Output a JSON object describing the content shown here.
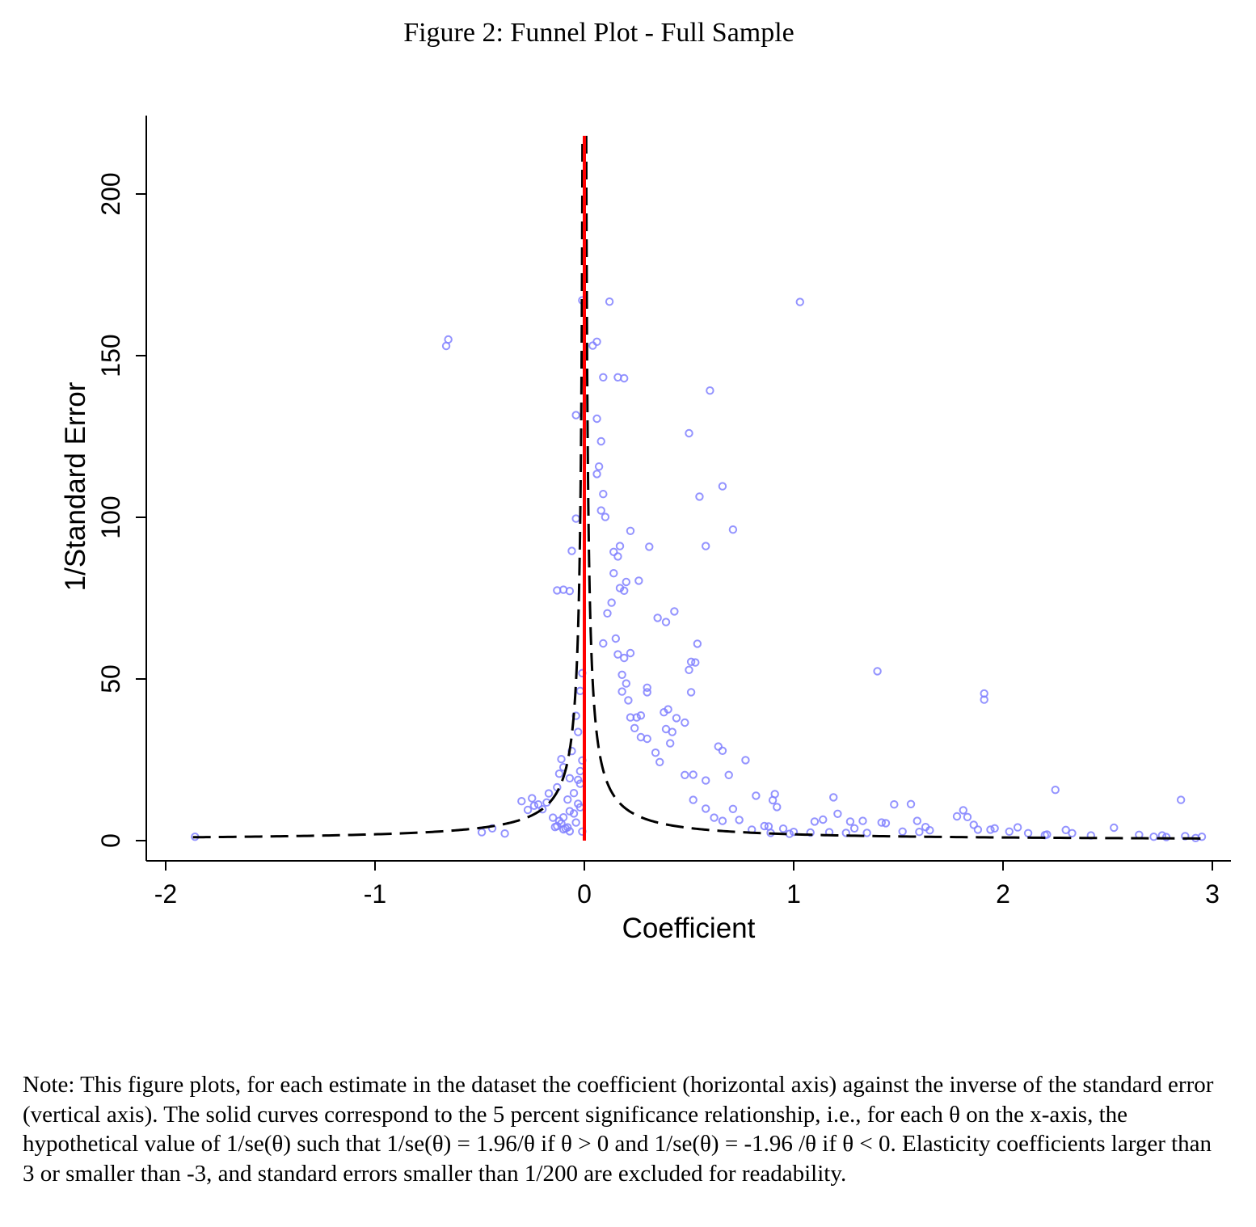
{
  "figure": {
    "title": "Figure 2: Funnel Plot - Full Sample",
    "note": "Note: This figure plots, for each estimate in the dataset the coefficient (horizontal axis) against the inverse of the standard error (vertical axis). The solid curves correspond to the 5 percent significance relationship, i.e., for each θ on the x-axis, the hypothetical value of 1/se(θ) such that 1/se(θ) = 1.96/θ if θ > 0 and 1/se(θ) = -1.96 /θ if θ < 0. Elasticity coefficients larger than 3 or smaller than -3, and standard errors smaller than 1/200 are excluded for readability."
  },
  "chart_data": {
    "type": "scatter",
    "title": "Figure 2: Funnel Plot - Full Sample",
    "xlabel": "Coefficient",
    "ylabel": "1/Standard Error",
    "xlim": [
      -2.05,
      3.1
    ],
    "ylim": [
      -6,
      224
    ],
    "xticks": [
      -2,
      -1,
      0,
      1,
      2,
      3
    ],
    "xtick_labels": [
      "-2",
      "-1",
      "0",
      "1",
      "2",
      "3"
    ],
    "yticks": [
      0,
      50,
      100,
      150,
      200
    ],
    "ytick_labels": [
      "0",
      "50",
      "100",
      "150",
      "200"
    ],
    "colors": {
      "points": "#8080ff",
      "vertical_line": "#ff0000",
      "significance_curve": "#000000"
    },
    "vertical_line": {
      "x": 0,
      "y_range": [
        0,
        218
      ]
    },
    "significance_curve": {
      "z": 1.96,
      "x_range": [
        -1.87,
        2.95
      ],
      "y_max": 218
    },
    "series": [
      {
        "name": "Estimates",
        "points": [
          [
            -1.86,
            1.2
          ],
          [
            -0.66,
            153
          ],
          [
            -0.65,
            155
          ],
          [
            -0.49,
            2.6
          ],
          [
            -0.44,
            3.8
          ],
          [
            -0.38,
            2.2
          ],
          [
            -0.3,
            12.2
          ],
          [
            -0.27,
            9.5
          ],
          [
            -0.25,
            13.1
          ],
          [
            -0.24,
            10.8
          ],
          [
            -0.22,
            11.2
          ],
          [
            -0.2,
            9.7
          ],
          [
            -0.18,
            11.8
          ],
          [
            -0.17,
            14.6
          ],
          [
            -0.15,
            7.1
          ],
          [
            -0.14,
            4.2
          ],
          [
            -0.13,
            16.5
          ],
          [
            -0.12,
            20.7
          ],
          [
            -0.11,
            25.2
          ],
          [
            -0.1,
            22.7
          ],
          [
            -0.13,
            4.5
          ],
          [
            -0.11,
            5.3
          ],
          [
            -0.1,
            7.2
          ],
          [
            -0.09,
            3.8
          ],
          [
            -0.08,
            4.1
          ],
          [
            -0.08,
            12.7
          ],
          [
            -0.07,
            9.1
          ],
          [
            -0.07,
            19.3
          ],
          [
            -0.06,
            27.7
          ],
          [
            -0.05,
            8.4
          ],
          [
            -0.05,
            14.7
          ],
          [
            -0.04,
            38.6
          ],
          [
            -0.04,
            5.6
          ],
          [
            -0.03,
            11.4
          ],
          [
            -0.03,
            33.6
          ],
          [
            -0.02,
            46.3
          ],
          [
            -0.02,
            21.5
          ],
          [
            -0.01,
            51.8
          ],
          [
            -0.01,
            24.8
          ],
          [
            -0.01,
            2.8
          ],
          [
            -0.02,
            17.6
          ],
          [
            -0.06,
            89.6
          ],
          [
            -0.04,
            99.6
          ],
          [
            -0.13,
            77.4
          ],
          [
            -0.1,
            77.6
          ],
          [
            -0.07,
            77.2
          ],
          [
            -0.04,
            131.6
          ],
          [
            -0.01,
            167.1
          ],
          [
            -0.1,
            3.5
          ],
          [
            -0.12,
            6.1
          ],
          [
            -0.02,
            10.3
          ],
          [
            -0.07,
            2.9
          ],
          [
            -0.03,
            18.8
          ],
          [
            0.12,
            166.7
          ],
          [
            0.06,
            154.3
          ],
          [
            0.04,
            153.1
          ],
          [
            0.16,
            143.3
          ],
          [
            0.19,
            143
          ],
          [
            0.09,
            143.3
          ],
          [
            0.06,
            130.5
          ],
          [
            0.08,
            123.5
          ],
          [
            0.07,
            115.7
          ],
          [
            0.09,
            107.2
          ],
          [
            0.06,
            113.4
          ],
          [
            0.08,
            102.1
          ],
          [
            0.1,
            100.1
          ],
          [
            0.14,
            89.3
          ],
          [
            0.16,
            87.9
          ],
          [
            0.17,
            91.1
          ],
          [
            0.22,
            95.8
          ],
          [
            0.31,
            90.9
          ],
          [
            0.26,
            80.4
          ],
          [
            0.2,
            80
          ],
          [
            0.19,
            77.3
          ],
          [
            0.17,
            78.1
          ],
          [
            0.14,
            82.7
          ],
          [
            0.13,
            73.6
          ],
          [
            0.11,
            70.3
          ],
          [
            0.09,
            61
          ],
          [
            0.15,
            62.5
          ],
          [
            0.16,
            57.6
          ],
          [
            0.19,
            56.5
          ],
          [
            0.18,
            51.3
          ],
          [
            0.22,
            58
          ],
          [
            0.2,
            48.6
          ],
          [
            0.18,
            46.1
          ],
          [
            0.21,
            43.4
          ],
          [
            0.22,
            38.1
          ],
          [
            0.25,
            38.1
          ],
          [
            0.27,
            38.7
          ],
          [
            0.3,
            47.3
          ],
          [
            0.3,
            45.9
          ],
          [
            0.24,
            34.8
          ],
          [
            0.27,
            32
          ],
          [
            0.3,
            31.5
          ],
          [
            0.34,
            27.2
          ],
          [
            0.36,
            24.3
          ],
          [
            0.38,
            39.7
          ],
          [
            0.39,
            34.5
          ],
          [
            0.4,
            40.6
          ],
          [
            0.42,
            33.6
          ],
          [
            0.41,
            30.1
          ],
          [
            0.44,
            37.9
          ],
          [
            0.48,
            36.5
          ],
          [
            0.35,
            68.9
          ],
          [
            0.39,
            67.6
          ],
          [
            0.43,
            70.9
          ],
          [
            0.5,
            52.8
          ],
          [
            0.51,
            55.3
          ],
          [
            0.53,
            55.1
          ],
          [
            0.54,
            60.9
          ],
          [
            0.51,
            45.9
          ],
          [
            0.48,
            20.3
          ],
          [
            0.52,
            20.4
          ],
          [
            0.58,
            18.6
          ],
          [
            0.64,
            29.1
          ],
          [
            0.66,
            27.8
          ],
          [
            0.69,
            20.3
          ],
          [
            0.77,
            24.9
          ],
          [
            0.6,
            139.2
          ],
          [
            0.5,
            126
          ],
          [
            0.55,
            106.4
          ],
          [
            0.66,
            109.6
          ],
          [
            0.58,
            91.1
          ],
          [
            0.71,
            96.2
          ],
          [
            1.03,
            166.6
          ],
          [
            0.52,
            12.6
          ],
          [
            0.58,
            9.9
          ],
          [
            0.62,
            7.1
          ],
          [
            0.66,
            6.1
          ],
          [
            0.71,
            9.8
          ],
          [
            0.74,
            6.4
          ],
          [
            0.8,
            3.4
          ],
          [
            0.82,
            13.9
          ],
          [
            0.86,
            4.5
          ],
          [
            0.89,
            2.4
          ],
          [
            0.91,
            14.4
          ],
          [
            0.9,
            12.5
          ],
          [
            0.92,
            10.4
          ],
          [
            0.88,
            4.4
          ],
          [
            0.95,
            3.7
          ],
          [
            0.98,
            2.1
          ],
          [
            1.0,
            2.7
          ],
          [
            1.08,
            2.5
          ],
          [
            1.1,
            5.9
          ],
          [
            1.14,
            6.5
          ],
          [
            1.17,
            2.6
          ],
          [
            1.19,
            13.4
          ],
          [
            1.21,
            8.3
          ],
          [
            1.25,
            2.4
          ],
          [
            1.27,
            5.9
          ],
          [
            1.29,
            3.8
          ],
          [
            1.33,
            6.1
          ],
          [
            1.35,
            2.4
          ],
          [
            1.4,
            52.4
          ],
          [
            1.42,
            5.6
          ],
          [
            1.44,
            5.4
          ],
          [
            1.48,
            11.2
          ],
          [
            1.52,
            2.8
          ],
          [
            1.56,
            11.3
          ],
          [
            1.59,
            6.1
          ],
          [
            1.6,
            2.7
          ],
          [
            1.63,
            4.2
          ],
          [
            1.65,
            3.2
          ],
          [
            1.78,
            7.5
          ],
          [
            1.81,
            9.4
          ],
          [
            1.83,
            7.3
          ],
          [
            1.86,
            4.9
          ],
          [
            1.88,
            3.4
          ],
          [
            1.91,
            45.5
          ],
          [
            1.91,
            43.6
          ],
          [
            1.94,
            3.4
          ],
          [
            1.96,
            3.8
          ],
          [
            2.03,
            2.8
          ],
          [
            2.07,
            4.1
          ],
          [
            2.12,
            2.3
          ],
          [
            2.2,
            1.7
          ],
          [
            2.21,
            1.9
          ],
          [
            2.25,
            15.7
          ],
          [
            2.3,
            3.3
          ],
          [
            2.33,
            2.3
          ],
          [
            2.42,
            1.6
          ],
          [
            2.53,
            4
          ],
          [
            2.65,
            1.8
          ],
          [
            2.72,
            1.2
          ],
          [
            2.76,
            1.6
          ],
          [
            2.78,
            1.1
          ],
          [
            2.85,
            12.6
          ],
          [
            2.87,
            1.4
          ],
          [
            2.92,
            0.8
          ],
          [
            2.95,
            1.2
          ]
        ]
      }
    ]
  }
}
